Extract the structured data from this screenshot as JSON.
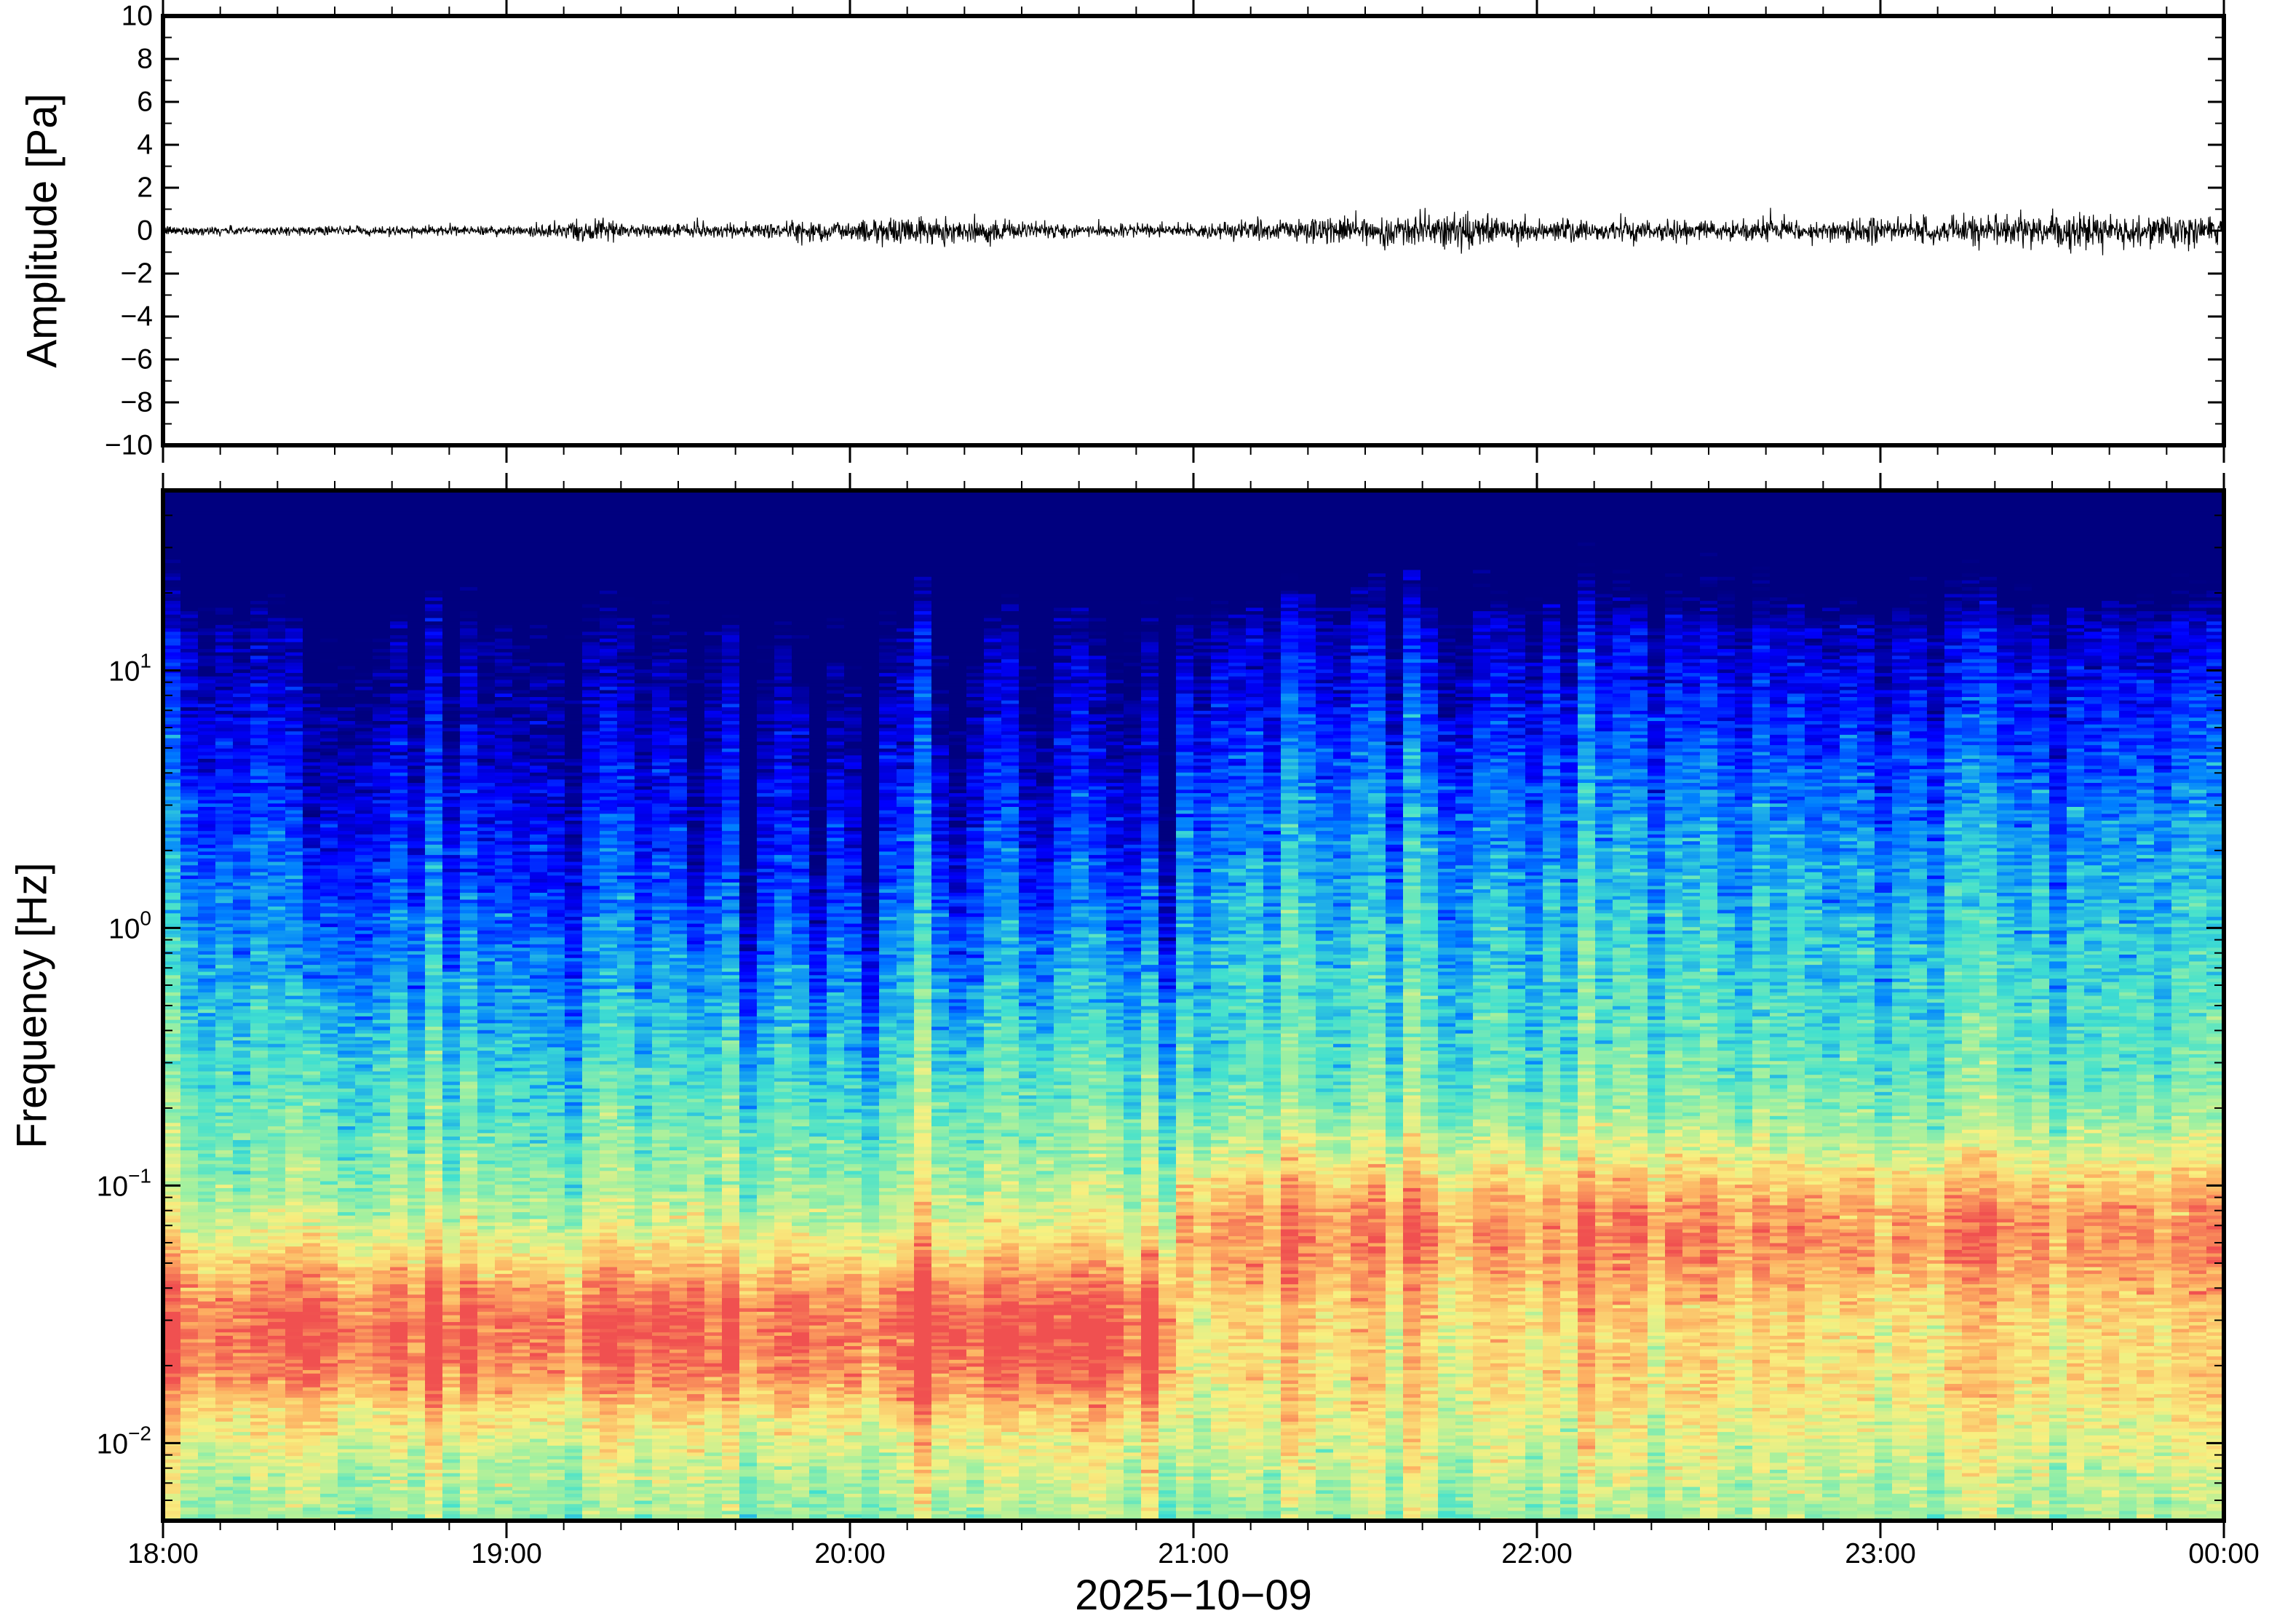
{
  "chart_data": [
    {
      "type": "line",
      "name": "waveform",
      "ylabel": "Amplitude [Pa]",
      "ylim": [
        -10,
        10
      ],
      "yticks": [
        10,
        8,
        6,
        4,
        2,
        0,
        -2,
        -4,
        -6,
        -8,
        -10
      ],
      "ytick_labels": [
        "10",
        "8",
        "6",
        "4",
        "2",
        "0",
        "−2",
        "−4",
        "−6",
        "−8",
        "−10"
      ],
      "xlim": [
        "2025-10-09 18:00",
        "2025-10-10 00:00"
      ],
      "envelope": {
        "note_time_hours": [
          18.0,
          18.5,
          19.0,
          19.25,
          19.5,
          19.75,
          20.0,
          20.15,
          20.5,
          20.75,
          21.0,
          21.25,
          21.5,
          21.75,
          22.0,
          22.5,
          23.0,
          23.5,
          24.0
        ],
        "amplitude_pa": [
          0.25,
          0.2,
          0.25,
          0.45,
          0.3,
          0.45,
          0.55,
          0.7,
          0.45,
          0.3,
          0.35,
          0.6,
          0.75,
          0.85,
          0.6,
          0.5,
          0.65,
          0.8,
          0.7
        ]
      },
      "color": "#000000"
    },
    {
      "type": "heatmap",
      "name": "spectrogram",
      "ylabel": "Frequency [Hz]",
      "yscale": "log",
      "ylim_hz": [
        0.005,
        50
      ],
      "yticks_hz": [
        0.01,
        0.1,
        1,
        10
      ],
      "ytick_labels": [
        {
          "base": "10",
          "exp": "−2"
        },
        {
          "base": "10",
          "exp": "−1"
        },
        {
          "base": "10",
          "exp": "0"
        },
        {
          "base": "10",
          "exp": "1"
        }
      ],
      "xlabel": "2025−10−09",
      "xticks": [
        "18:00",
        "19:00",
        "20:00",
        "21:00",
        "22:00",
        "23:00",
        "00:00"
      ],
      "xtick_hours": [
        18,
        19,
        20,
        21,
        22,
        23,
        24
      ],
      "colormap": "jet",
      "colormap_stops": [
        "#00007f",
        "#0000ff",
        "#0080ff",
        "#40e0d0",
        "#a0f0a0",
        "#f8f080",
        "#fdae61",
        "#f05050"
      ],
      "quiet_column_times_hours": [
        18.45,
        19.55,
        19.7,
        19.9,
        20.05,
        20.3,
        20.55,
        20.75,
        20.9
      ],
      "regime_change_hours": 20.95,
      "peak_band_hz_before": 0.03,
      "peak_band_hz_after": 0.07
    }
  ]
}
